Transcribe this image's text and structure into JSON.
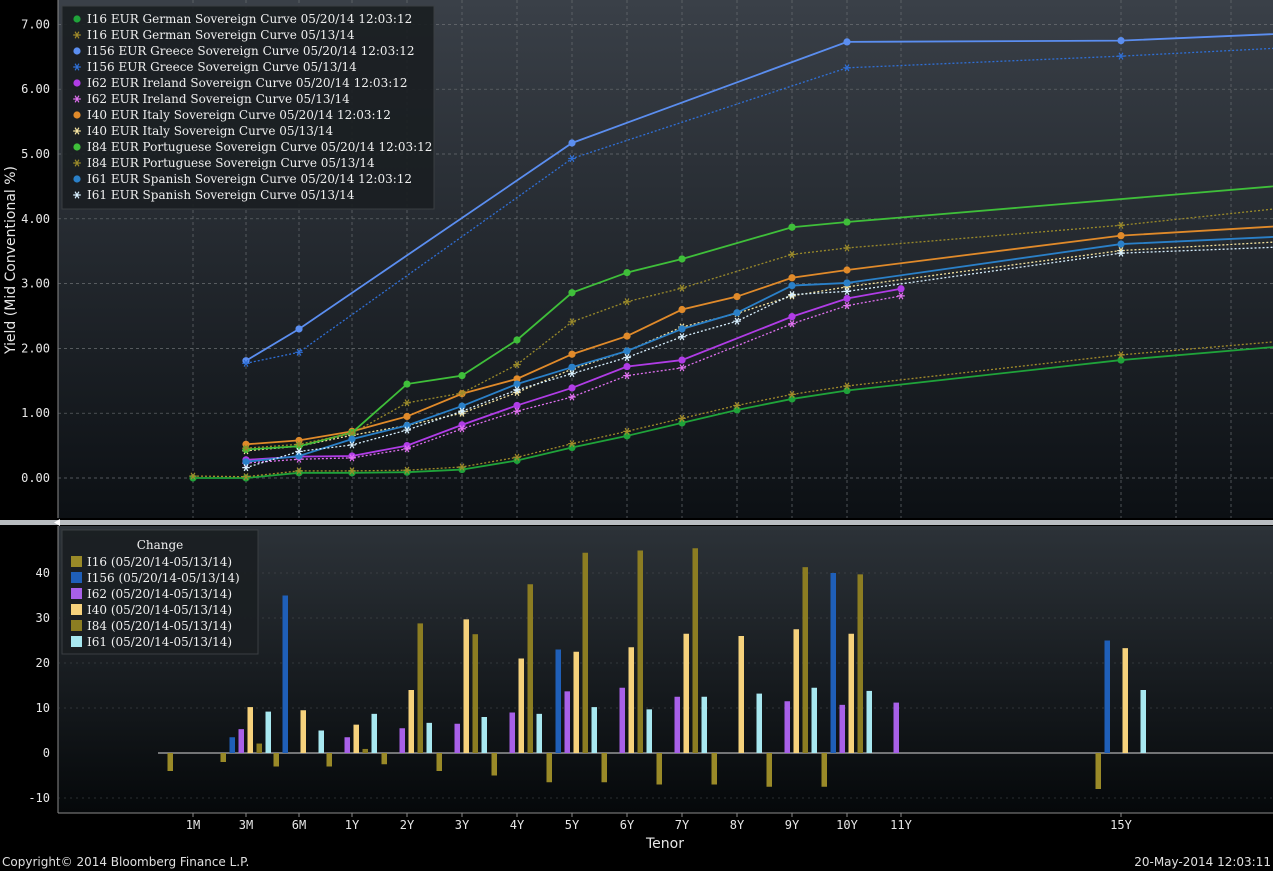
{
  "footer": {
    "copyright": "Copyright© 2014 Bloomberg Finance L.P.",
    "timestamp": "20-May-2014 12:03:11"
  },
  "chart_data": [
    {
      "type": "line",
      "ylabel": "Yield (Mid Conventional %)",
      "ylim": [
        -0.6,
        7.3
      ],
      "yticks": [
        "7.00",
        "6.00",
        "5.00",
        "4.00",
        "3.00",
        "2.00",
        "1.00",
        "0.00"
      ],
      "categories": [
        "1M",
        "3M",
        "6M",
        "1Y",
        "2Y",
        "3Y",
        "4Y",
        "5Y",
        "6Y",
        "7Y",
        "8Y",
        "9Y",
        "10Y",
        "11Y",
        "15Y"
      ],
      "grid": true,
      "legend_position": "top-left",
      "series": [
        {
          "name": "I16 EUR German Sovereign Curve 05/20/14 12:03:12",
          "color": "#1fa33a",
          "style": "solid",
          "marker": "dot",
          "points": [
            [
              "1M",
              0.0
            ],
            [
              "3M",
              0.0
            ],
            [
              "6M",
              0.08
            ],
            [
              "1Y",
              0.08
            ],
            [
              "2Y",
              0.09
            ],
            [
              "3Y",
              0.13
            ],
            [
              "4Y",
              0.27
            ],
            [
              "5Y",
              0.47
            ],
            [
              "6Y",
              0.65
            ],
            [
              "7Y",
              0.85
            ],
            [
              "8Y",
              1.05
            ],
            [
              "9Y",
              1.22
            ],
            [
              "10Y",
              1.35
            ],
            [
              "15Y",
              1.82
            ],
            [
              "20Y",
              2.02
            ]
          ]
        },
        {
          "name": "I16 EUR German Sovereign Curve 05/13/14",
          "color": "#a08a2a",
          "style": "dotted",
          "marker": "star",
          "points": [
            [
              "1M",
              0.03
            ],
            [
              "3M",
              0.02
            ],
            [
              "6M",
              0.11
            ],
            [
              "1Y",
              0.11
            ],
            [
              "2Y",
              0.12
            ],
            [
              "3Y",
              0.17
            ],
            [
              "4Y",
              0.32
            ],
            [
              "5Y",
              0.53
            ],
            [
              "6Y",
              0.72
            ],
            [
              "7Y",
              0.92
            ],
            [
              "8Y",
              1.12
            ],
            [
              "9Y",
              1.29
            ],
            [
              "10Y",
              1.42
            ],
            [
              "15Y",
              1.9
            ],
            [
              "20Y",
              2.1
            ]
          ]
        },
        {
          "name": "I156 EUR Greece Sovereign Curve 05/20/14 12:03:12",
          "color": "#5b8ef0",
          "style": "solid",
          "marker": "dot",
          "points": [
            [
              "3M",
              1.81
            ],
            [
              "6M",
              2.3
            ],
            [
              "5Y",
              5.17
            ],
            [
              "10Y",
              6.73
            ],
            [
              "15Y",
              6.75
            ],
            [
              "20Y",
              6.85
            ]
          ]
        },
        {
          "name": "I156 EUR Greece Sovereign Curve 05/13/14",
          "color": "#2f6fd6",
          "style": "dotted",
          "marker": "star",
          "points": [
            [
              "3M",
              1.77
            ],
            [
              "6M",
              1.94
            ],
            [
              "5Y",
              4.93
            ],
            [
              "10Y",
              6.33
            ],
            [
              "15Y",
              6.51
            ],
            [
              "20Y",
              6.63
            ]
          ]
        },
        {
          "name": "I62 EUR Ireland Sovereign Curve 05/20/14 12:03:12",
          "color": "#b03ce6",
          "style": "solid",
          "marker": "dot",
          "points": [
            [
              "3M",
              0.28
            ],
            [
              "6M",
              0.33
            ],
            [
              "1Y",
              0.34
            ],
            [
              "2Y",
              0.5
            ],
            [
              "3Y",
              0.82
            ],
            [
              "4Y",
              1.12
            ],
            [
              "5Y",
              1.39
            ],
            [
              "6Y",
              1.72
            ],
            [
              "7Y",
              1.82
            ],
            [
              "9Y",
              2.49
            ],
            [
              "10Y",
              2.77
            ],
            [
              "11Y",
              2.92
            ]
          ]
        },
        {
          "name": "I62 EUR Ireland Sovereign Curve 05/13/14",
          "color": "#e070f0",
          "style": "dotted",
          "marker": "star",
          "points": [
            [
              "3M",
              0.23
            ],
            [
              "6M",
              0.29
            ],
            [
              "1Y",
              0.31
            ],
            [
              "2Y",
              0.45
            ],
            [
              "3Y",
              0.76
            ],
            [
              "4Y",
              1.03
            ],
            [
              "5Y",
              1.25
            ],
            [
              "6Y",
              1.58
            ],
            [
              "7Y",
              1.7
            ],
            [
              "9Y",
              2.38
            ],
            [
              "10Y",
              2.66
            ],
            [
              "11Y",
              2.81
            ]
          ]
        },
        {
          "name": "I40 EUR Italy Sovereign Curve 05/20/14 12:03:12",
          "color": "#e08a2a",
          "style": "solid",
          "marker": "dot",
          "points": [
            [
              "3M",
              0.52
            ],
            [
              "6M",
              0.58
            ],
            [
              "1Y",
              0.72
            ],
            [
              "2Y",
              0.95
            ],
            [
              "3Y",
              1.3
            ],
            [
              "4Y",
              1.53
            ],
            [
              "5Y",
              1.91
            ],
            [
              "6Y",
              2.19
            ],
            [
              "7Y",
              2.6
            ],
            [
              "8Y",
              2.8
            ],
            [
              "9Y",
              3.09
            ],
            [
              "10Y",
              3.21
            ],
            [
              "15Y",
              3.74
            ],
            [
              "20Y",
              3.88
            ]
          ]
        },
        {
          "name": "I40 EUR Italy Sovereign Curve 05/13/14",
          "color": "#f5e4a0",
          "style": "dotted",
          "marker": "star",
          "points": [
            [
              "3M",
              0.42
            ],
            [
              "6M",
              0.49
            ],
            [
              "1Y",
              0.66
            ],
            [
              "2Y",
              0.81
            ],
            [
              "3Y",
              1.0
            ],
            [
              "4Y",
              1.32
            ],
            [
              "5Y",
              1.68
            ],
            [
              "6Y",
              1.96
            ],
            [
              "7Y",
              2.33
            ],
            [
              "8Y",
              2.54
            ],
            [
              "9Y",
              2.81
            ],
            [
              "10Y",
              2.95
            ],
            [
              "15Y",
              3.51
            ],
            [
              "20Y",
              3.64
            ]
          ]
        },
        {
          "name": "I84 EUR Portuguese Sovereign Curve 05/20/14 12:03:12",
          "color": "#3fbf3a",
          "style": "solid",
          "marker": "dot",
          "points": [
            [
              "3M",
              0.44
            ],
            [
              "6M",
              0.49
            ],
            [
              "1Y",
              0.7
            ],
            [
              "2Y",
              1.45
            ],
            [
              "3Y",
              1.58
            ],
            [
              "4Y",
              2.13
            ],
            [
              "5Y",
              2.86
            ],
            [
              "6Y",
              3.17
            ],
            [
              "7Y",
              3.38
            ],
            [
              "9Y",
              3.87
            ],
            [
              "10Y",
              3.95
            ],
            [
              "20Y",
              4.5
            ]
          ]
        },
        {
          "name": "I84 EUR Portuguese Sovereign Curve 05/13/14",
          "color": "#9a8a2a",
          "style": "dotted",
          "marker": "star",
          "points": [
            [
              "3M",
              0.46
            ],
            [
              "6M",
              0.52
            ],
            [
              "1Y",
              0.69
            ],
            [
              "2Y",
              1.16
            ],
            [
              "3Y",
              1.31
            ],
            [
              "4Y",
              1.75
            ],
            [
              "5Y",
              2.41
            ],
            [
              "6Y",
              2.72
            ],
            [
              "7Y",
              2.93
            ],
            [
              "9Y",
              3.45
            ],
            [
              "10Y",
              3.55
            ],
            [
              "15Y",
              3.9
            ],
            [
              "20Y",
              4.15
            ]
          ]
        },
        {
          "name": "I61 EUR Spanish Sovereign Curve 05/20/14 12:03:12",
          "color": "#2a80c8",
          "style": "solid",
          "marker": "dot",
          "points": [
            [
              "3M",
              0.25
            ],
            [
              "6M",
              0.34
            ],
            [
              "1Y",
              0.6
            ],
            [
              "2Y",
              0.81
            ],
            [
              "3Y",
              1.11
            ],
            [
              "4Y",
              1.45
            ],
            [
              "5Y",
              1.71
            ],
            [
              "6Y",
              1.96
            ],
            [
              "7Y",
              2.3
            ],
            [
              "8Y",
              2.55
            ],
            [
              "9Y",
              2.97
            ],
            [
              "10Y",
              3.01
            ],
            [
              "15Y",
              3.61
            ],
            [
              "20Y",
              3.72
            ]
          ]
        },
        {
          "name": "I61 EUR Spanish Sovereign Curve 05/13/14",
          "color": "#d8f0ff",
          "style": "dotted",
          "marker": "star",
          "points": [
            [
              "3M",
              0.16
            ],
            [
              "6M",
              0.41
            ],
            [
              "1Y",
              0.51
            ],
            [
              "2Y",
              0.74
            ],
            [
              "3Y",
              1.03
            ],
            [
              "4Y",
              1.36
            ],
            [
              "5Y",
              1.61
            ],
            [
              "6Y",
              1.86
            ],
            [
              "7Y",
              2.18
            ],
            [
              "8Y",
              2.42
            ],
            [
              "9Y",
              2.83
            ],
            [
              "10Y",
              2.88
            ],
            [
              "15Y",
              3.47
            ],
            [
              "20Y",
              3.56
            ]
          ]
        }
      ]
    },
    {
      "type": "bar",
      "legend_title": "Change",
      "xlabel": "Tenor",
      "ylim": [
        -13,
        50
      ],
      "yticks": [
        "40",
        "30",
        "20",
        "10",
        "0",
        "-10"
      ],
      "categories": [
        "1M",
        "3M",
        "6M",
        "1Y",
        "2Y",
        "3Y",
        "4Y",
        "5Y",
        "6Y",
        "7Y",
        "8Y",
        "9Y",
        "10Y",
        "11Y",
        "15Y"
      ],
      "legend_position": "top-left",
      "series": [
        {
          "name": "I16 (05/20/14-05/13/14)",
          "color": "#9a8a28",
          "values": [
            -4,
            -2,
            -3,
            -3,
            -2.5,
            -4,
            -5,
            -6.5,
            -6.5,
            -7,
            -7,
            -7.5,
            -7.5,
            null,
            -8
          ]
        },
        {
          "name": "I156 (05/20/14-05/13/14)",
          "color": "#1f5fb8",
          "values": [
            null,
            3.5,
            35,
            null,
            null,
            null,
            null,
            23,
            null,
            null,
            null,
            null,
            40,
            null,
            25
          ]
        },
        {
          "name": "I62 (05/20/14-05/13/14)",
          "color": "#a860e8",
          "values": [
            null,
            5.3,
            null,
            3.5,
            5.5,
            6.5,
            9,
            13.7,
            14.5,
            12.5,
            null,
            11.5,
            10.7,
            11.2,
            null
          ]
        },
        {
          "name": "I40 (05/20/14-05/13/14)",
          "color": "#f6d27c",
          "values": [
            null,
            10.2,
            9.5,
            6.3,
            14,
            29.7,
            21,
            22.5,
            23.5,
            26.5,
            26,
            27.5,
            26.5,
            null,
            23.3
          ]
        },
        {
          "name": "I84 (05/20/14-05/13/14)",
          "color": "#8c7d22",
          "values": [
            null,
            2.1,
            null,
            0.9,
            28.8,
            26.4,
            37.5,
            44.5,
            45,
            45.5,
            null,
            41.3,
            39.7,
            null,
            null
          ]
        },
        {
          "name": "I61 (05/20/14-05/13/14)",
          "color": "#a8e8f0",
          "values": [
            null,
            9.2,
            5,
            8.7,
            6.7,
            8,
            8.7,
            10.2,
            9.7,
            12.5,
            13.2,
            14.5,
            13.8,
            null,
            14
          ]
        }
      ]
    }
  ]
}
